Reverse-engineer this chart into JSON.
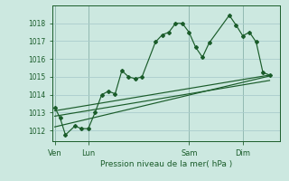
{
  "xlabel": "Pression niveau de la mer( hPa )",
  "bg_color": "#cce8e0",
  "grid_color": "#aacccc",
  "line_color": "#1a5c2a",
  "ylim": [
    1011.4,
    1019.0
  ],
  "xlim": [
    -0.2,
    16.8
  ],
  "yticks": [
    1012,
    1013,
    1014,
    1015,
    1016,
    1017,
    1018
  ],
  "day_labels": [
    "Ven",
    "Lun",
    "Sam",
    "Dim"
  ],
  "day_positions": [
    0.0,
    2.5,
    10.0,
    14.0
  ],
  "series1": [
    [
      0.0,
      1013.3
    ],
    [
      0.4,
      1012.7
    ],
    [
      0.8,
      1011.75
    ],
    [
      1.5,
      1012.25
    ],
    [
      2.0,
      1012.1
    ],
    [
      2.5,
      1012.1
    ],
    [
      3.0,
      1013.0
    ],
    [
      3.5,
      1014.0
    ],
    [
      4.0,
      1014.2
    ],
    [
      4.5,
      1014.05
    ],
    [
      5.0,
      1015.35
    ],
    [
      5.5,
      1015.0
    ],
    [
      6.0,
      1014.9
    ],
    [
      6.5,
      1015.0
    ],
    [
      7.5,
      1016.95
    ],
    [
      8.0,
      1017.35
    ],
    [
      8.5,
      1017.5
    ],
    [
      9.0,
      1018.0
    ],
    [
      9.5,
      1018.0
    ],
    [
      10.0,
      1017.5
    ],
    [
      10.5,
      1016.65
    ],
    [
      11.0,
      1016.1
    ],
    [
      11.5,
      1016.9
    ],
    [
      13.0,
      1018.45
    ],
    [
      13.5,
      1017.9
    ],
    [
      14.0,
      1017.3
    ],
    [
      14.5,
      1017.5
    ],
    [
      15.0,
      1016.95
    ],
    [
      15.5,
      1015.25
    ],
    [
      16.0,
      1015.1
    ]
  ],
  "series2": [
    [
      0.0,
      1013.1
    ],
    [
      16.0,
      1015.1
    ]
  ],
  "series3": [
    [
      0.0,
      1012.2
    ],
    [
      16.0,
      1015.05
    ]
  ],
  "series4": [
    [
      0.0,
      1012.8
    ],
    [
      16.0,
      1014.8
    ]
  ]
}
